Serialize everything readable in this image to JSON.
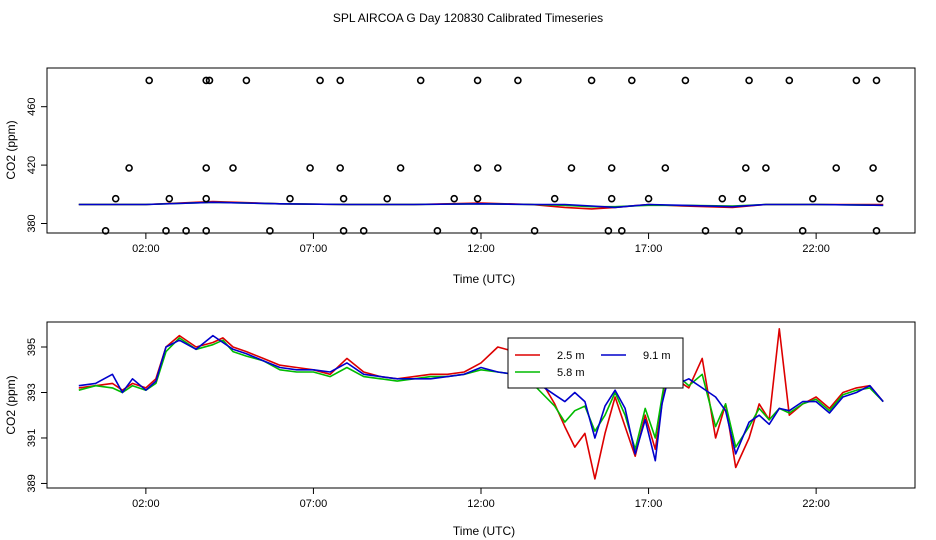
{
  "title": "SPL AIRCOA G  Day 120830  Calibrated Timeseries",
  "colors": {
    "red": "#dd0000",
    "green": "#00bb00",
    "blue": "#0000cc",
    "black": "#000000"
  },
  "chart_data": [
    {
      "type": "scatter+line",
      "name": "top-panel",
      "xlabel": "Time (UTC)",
      "ylabel": "CO2 (ppm)",
      "xlim": [
        -0.95,
        24.95
      ],
      "ylim": [
        373.5,
        486.5
      ],
      "xticks": [
        2,
        7,
        12,
        17,
        22
      ],
      "xtick_labels": [
        "02:00",
        "07:00",
        "12:00",
        "17:00",
        "22:00"
      ],
      "yticks": [
        380,
        420,
        460
      ],
      "ytick_labels": [
        "380",
        "420",
        "460"
      ],
      "series": [
        {
          "name": "2.5 m",
          "color": "#dd0000",
          "x": [
            0,
            2,
            4,
            6,
            8,
            10,
            12,
            13.5,
            14.5,
            15.3,
            16,
            17,
            18,
            19.5,
            20.5,
            22,
            24
          ],
          "y": [
            393,
            393,
            395,
            393.5,
            393,
            393,
            394,
            393,
            391,
            390,
            391,
            393,
            392,
            391,
            393,
            393,
            393
          ]
        },
        {
          "name": "5.8 m",
          "color": "#00bb00",
          "x": [
            0,
            2,
            4,
            6,
            8,
            10,
            12,
            13.5,
            14.5,
            15.3,
            16,
            17,
            18,
            19.5,
            20.5,
            22,
            24
          ],
          "y": [
            393,
            393,
            394.5,
            393.5,
            393,
            393,
            393.5,
            393,
            392.5,
            391.5,
            391.5,
            392.5,
            392.5,
            392,
            393,
            393,
            392.5
          ]
        },
        {
          "name": "9.1 m",
          "color": "#0000cc",
          "x": [
            0,
            2,
            4,
            6,
            8,
            10,
            12,
            13.5,
            14.5,
            15.3,
            16,
            17,
            18,
            19.5,
            20.5,
            22,
            24
          ],
          "y": [
            393,
            393,
            394.5,
            393.5,
            393,
            393,
            393.5,
            393,
            393,
            392,
            391,
            393,
            392.5,
            391.5,
            393,
            393,
            392.5
          ]
        }
      ],
      "points": {
        "x": [
          0.8,
          1.1,
          1.5,
          2.1,
          2.6,
          2.7,
          3.2,
          3.8,
          3.8,
          3.8,
          3.8,
          3.9,
          4.6,
          5,
          5.7,
          6.3,
          6.9,
          7.2,
          7.8,
          7.8,
          7.9,
          7.9,
          8.5,
          9.2,
          9.6,
          10.2,
          10.7,
          11.2,
          11.8,
          11.9,
          11.9,
          11.9,
          12.5,
          13.1,
          13.6,
          14.2,
          14.7,
          15.3,
          15.8,
          15.9,
          15.9,
          16.2,
          16.5,
          17,
          17.5,
          18.1,
          18.7,
          19.2,
          19.7,
          19.8,
          19.9,
          20,
          20.5,
          21.2,
          21.6,
          21.9,
          22.6,
          23.2,
          23.7,
          23.8,
          23.8,
          23.9
        ],
        "y": [
          375,
          397,
          418,
          478,
          375,
          397,
          375,
          375,
          397,
          418,
          478,
          478,
          418,
          478,
          375,
          397,
          418,
          478,
          418,
          478,
          375,
          397,
          375,
          397,
          418,
          478,
          375,
          397,
          375,
          397,
          418,
          478,
          418,
          478,
          375,
          397,
          418,
          478,
          375,
          397,
          418,
          375,
          478,
          397,
          418,
          478,
          375,
          397,
          375,
          397,
          418,
          478,
          418,
          478,
          375,
          397,
          418,
          478,
          418,
          478,
          375,
          397
        ]
      }
    },
    {
      "type": "line",
      "name": "bottom-panel",
      "xlabel": "Time (UTC)",
      "ylabel": "CO2 (ppm)",
      "xlim": [
        -0.95,
        24.95
      ],
      "ylim": [
        388.8,
        396.1
      ],
      "xticks": [
        2,
        7,
        12,
        17,
        22
      ],
      "xtick_labels": [
        "02:00",
        "07:00",
        "12:00",
        "17:00",
        "22:00"
      ],
      "yticks": [
        389,
        391,
        393,
        395
      ],
      "ytick_labels": [
        "389",
        "391",
        "393",
        "395"
      ],
      "legend": {
        "position": "top-center",
        "entries": [
          "2.5 m",
          "9.1 m",
          "5.8 m"
        ]
      },
      "series": [
        {
          "name": "2.5 m",
          "color": "#dd0000",
          "x": [
            0,
            0.5,
            1,
            1.3,
            1.6,
            2,
            2.3,
            2.6,
            3,
            3.5,
            4,
            4.3,
            4.6,
            5,
            5.5,
            6,
            6.5,
            7,
            7.5,
            8,
            8.5,
            9,
            9.5,
            10,
            10.5,
            11,
            11.5,
            12,
            12.5,
            13,
            13.4,
            13.8,
            14.2,
            14.5,
            14.8,
            15.1,
            15.4,
            15.7,
            16,
            16.3,
            16.6,
            16.9,
            17.2,
            17.4,
            17.6,
            17.9,
            18.2,
            18.6,
            19,
            19.3,
            19.6,
            20,
            20.3,
            20.6,
            20.9,
            21.2,
            21.6,
            22,
            22.4,
            22.8,
            23.2,
            23.6,
            24
          ],
          "y": [
            393.2,
            393.3,
            393.4,
            393.1,
            393.4,
            393.2,
            393.6,
            395,
            395.5,
            395,
            395.2,
            395.4,
            395,
            394.8,
            394.5,
            394.2,
            394.1,
            394,
            393.8,
            394.5,
            393.9,
            393.7,
            393.6,
            393.7,
            393.8,
            393.8,
            393.9,
            394.3,
            395.0,
            394.8,
            394.8,
            393.5,
            392.5,
            391.5,
            390.6,
            391.2,
            389.2,
            391.2,
            392.8,
            391.5,
            390.2,
            392,
            390.5,
            392.5,
            394.8,
            393.5,
            393.2,
            394.5,
            391,
            392.5,
            389.7,
            391,
            392.5,
            391.8,
            395.8,
            392.0,
            392.5,
            392.8,
            392.3,
            393.0,
            393.2,
            393.3,
            392.6
          ]
        },
        {
          "name": "5.8 m",
          "color": "#00bb00",
          "x": [
            0,
            0.5,
            1,
            1.3,
            1.6,
            2,
            2.3,
            2.6,
            3,
            3.5,
            4,
            4.3,
            4.6,
            5,
            5.5,
            6,
            6.5,
            7,
            7.5,
            8,
            8.5,
            9,
            9.5,
            10,
            10.5,
            11,
            11.5,
            12,
            12.5,
            13,
            13.4,
            13.8,
            14.2,
            14.5,
            14.8,
            15.1,
            15.4,
            15.7,
            16,
            16.3,
            16.6,
            16.9,
            17.2,
            17.4,
            17.6,
            17.9,
            18.2,
            18.6,
            19,
            19.3,
            19.6,
            20,
            20.3,
            20.6,
            20.9,
            21.2,
            21.6,
            22,
            22.4,
            22.8,
            23.2,
            23.6,
            24
          ],
          "y": [
            393.1,
            393.3,
            393.2,
            393.0,
            393.3,
            393.1,
            393.4,
            394.8,
            395.4,
            394.9,
            395.1,
            395.3,
            394.8,
            394.6,
            394.4,
            394.0,
            393.9,
            393.9,
            393.7,
            394.1,
            393.7,
            393.6,
            393.5,
            393.6,
            393.7,
            393.7,
            393.8,
            394.0,
            393.9,
            393.8,
            393.6,
            393.0,
            392.4,
            391.7,
            392.2,
            392.4,
            391.3,
            392.0,
            393.0,
            392.0,
            390.5,
            392.3,
            391.0,
            392.8,
            394.5,
            393.7,
            393.3,
            393.8,
            391.5,
            392.5,
            390.6,
            391.5,
            392.3,
            391.8,
            392.3,
            392.1,
            392.5,
            392.7,
            392.2,
            392.9,
            393.1,
            393.2,
            392.6
          ]
        },
        {
          "name": "9.1 m",
          "color": "#0000cc",
          "x": [
            0,
            0.5,
            1,
            1.3,
            1.6,
            2,
            2.3,
            2.6,
            3,
            3.5,
            4,
            4.3,
            4.6,
            5,
            5.5,
            6,
            6.5,
            7,
            7.5,
            8,
            8.5,
            9,
            9.5,
            10,
            10.5,
            11,
            11.5,
            12,
            12.5,
            13,
            13.4,
            13.8,
            14.2,
            14.5,
            14.8,
            15.1,
            15.4,
            15.7,
            16,
            16.3,
            16.6,
            16.9,
            17.2,
            17.4,
            17.6,
            17.9,
            18.2,
            18.6,
            19,
            19.3,
            19.6,
            20,
            20.3,
            20.6,
            20.9,
            21.2,
            21.6,
            22,
            22.4,
            22.8,
            23.2,
            23.6,
            24
          ],
          "y": [
            393.3,
            393.4,
            393.8,
            393.0,
            393.6,
            393.1,
            393.5,
            395.0,
            395.3,
            394.9,
            395.5,
            395.2,
            394.9,
            394.7,
            394.4,
            394.1,
            394.0,
            394.0,
            393.9,
            394.3,
            393.8,
            393.7,
            393.6,
            393.6,
            393.6,
            393.7,
            393.8,
            394.1,
            393.9,
            393.8,
            393.7,
            393.3,
            392.9,
            392.6,
            393.0,
            392.6,
            391.0,
            392.4,
            393.1,
            392.3,
            390.3,
            391.8,
            390.0,
            392.5,
            393.7,
            393.4,
            393.6,
            393.2,
            392.8,
            392.2,
            390.3,
            391.7,
            392.0,
            391.6,
            392.3,
            392.2,
            392.6,
            392.6,
            392.1,
            392.8,
            393.0,
            393.3,
            392.6
          ]
        }
      ]
    }
  ]
}
